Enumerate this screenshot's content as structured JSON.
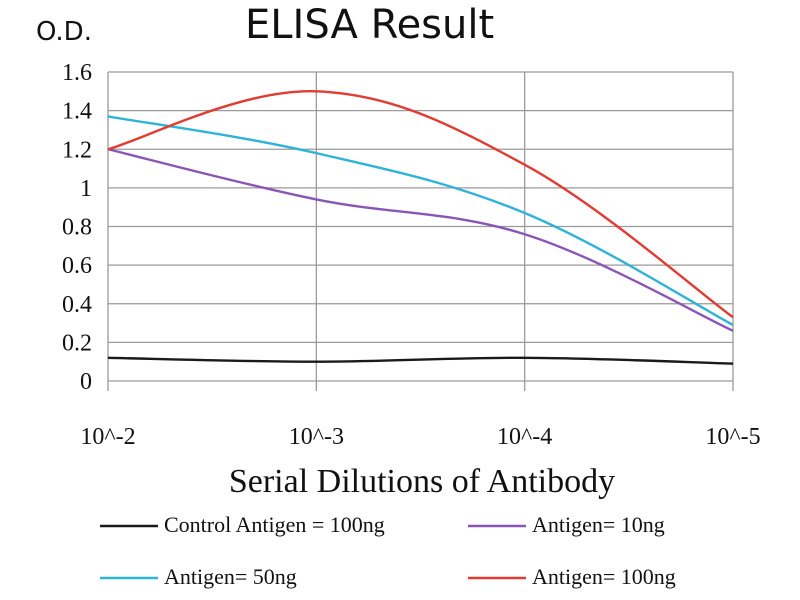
{
  "chart_data": {
    "type": "line",
    "title": "ELISA Result",
    "ylabel": "O.D.",
    "xlabel": "Serial Dilutions of Antibody",
    "categories": [
      "10^-2",
      "10^-3",
      "10^-4",
      "10^-5"
    ],
    "ylim": [
      0,
      1.6
    ],
    "yticks": [
      0,
      0.2,
      0.4,
      0.6,
      0.8,
      1,
      1.2,
      1.4,
      1.6
    ],
    "ytick_labels": [
      "0",
      "0.2",
      "0.4",
      "0.6",
      "0.8",
      "1",
      "1.2",
      "1.4",
      "1.6"
    ],
    "grid": true,
    "legend_position": "bottom",
    "series": [
      {
        "name": "Control Antigen = 100ng",
        "color": "#1a1a1a",
        "values": [
          0.12,
          0.1,
          0.12,
          0.09
        ]
      },
      {
        "name": "Antigen= 10ng",
        "color": "#8a55b5",
        "values": [
          1.2,
          0.94,
          0.76,
          0.26
        ]
      },
      {
        "name": "Antigen= 50ng",
        "color": "#2fb3d6",
        "values": [
          1.37,
          1.18,
          0.87,
          0.29
        ]
      },
      {
        "name": "Antigen= 100ng",
        "color": "#e23b32",
        "values": [
          1.2,
          1.5,
          1.12,
          0.33
        ]
      }
    ]
  }
}
